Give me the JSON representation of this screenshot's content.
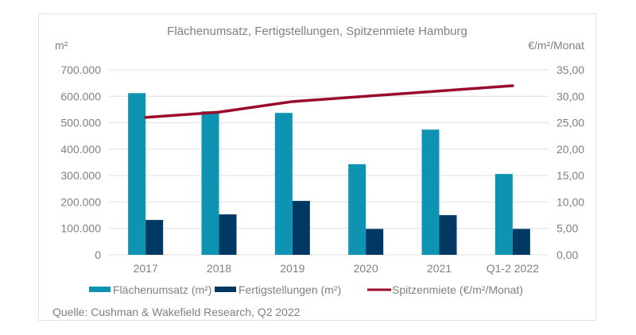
{
  "chart_data": {
    "type": "bar",
    "title": "Flächenumsatz, Fertigstellungen, Spitzenmiete Hamburg",
    "ylabel_left": "m²",
    "ylabel_right": "€/m²/Monat",
    "xlabel": "",
    "categories": [
      "2017",
      "2018",
      "2019",
      "2020",
      "2021",
      "Q1-2 2022"
    ],
    "ylim_left": [
      0,
      700000
    ],
    "ylim_right": [
      0,
      35
    ],
    "yticks_left": [
      "0",
      "100.000",
      "200.000",
      "300.000",
      "400.000",
      "500.000",
      "600.000",
      "700.000"
    ],
    "yticks_right": [
      "0,00",
      "5,00",
      "10,00",
      "15,00",
      "20,00",
      "25,00",
      "30,00",
      "35,00"
    ],
    "grid": true,
    "legend_position": "bottom",
    "series": [
      {
        "name": "Flächenumsatz (m²)",
        "type": "bar",
        "axis": "left",
        "color": "#0e93b3",
        "values": [
          612000,
          543000,
          537000,
          343000,
          474000,
          306000
        ]
      },
      {
        "name": "Fertigstellungen (m²)",
        "type": "bar",
        "axis": "left",
        "color": "#003864",
        "values": [
          132000,
          153000,
          204000,
          98000,
          150000,
          98000
        ]
      },
      {
        "name": "Spitzenmiete (€/m²/Monat)",
        "type": "line",
        "axis": "right",
        "color": "#9b0a2a",
        "values": [
          26.0,
          27.0,
          29.0,
          30.0,
          31.0,
          32.0
        ]
      }
    ],
    "source": "Quelle: Cushman & Wakefield Research, Q2 2022"
  }
}
